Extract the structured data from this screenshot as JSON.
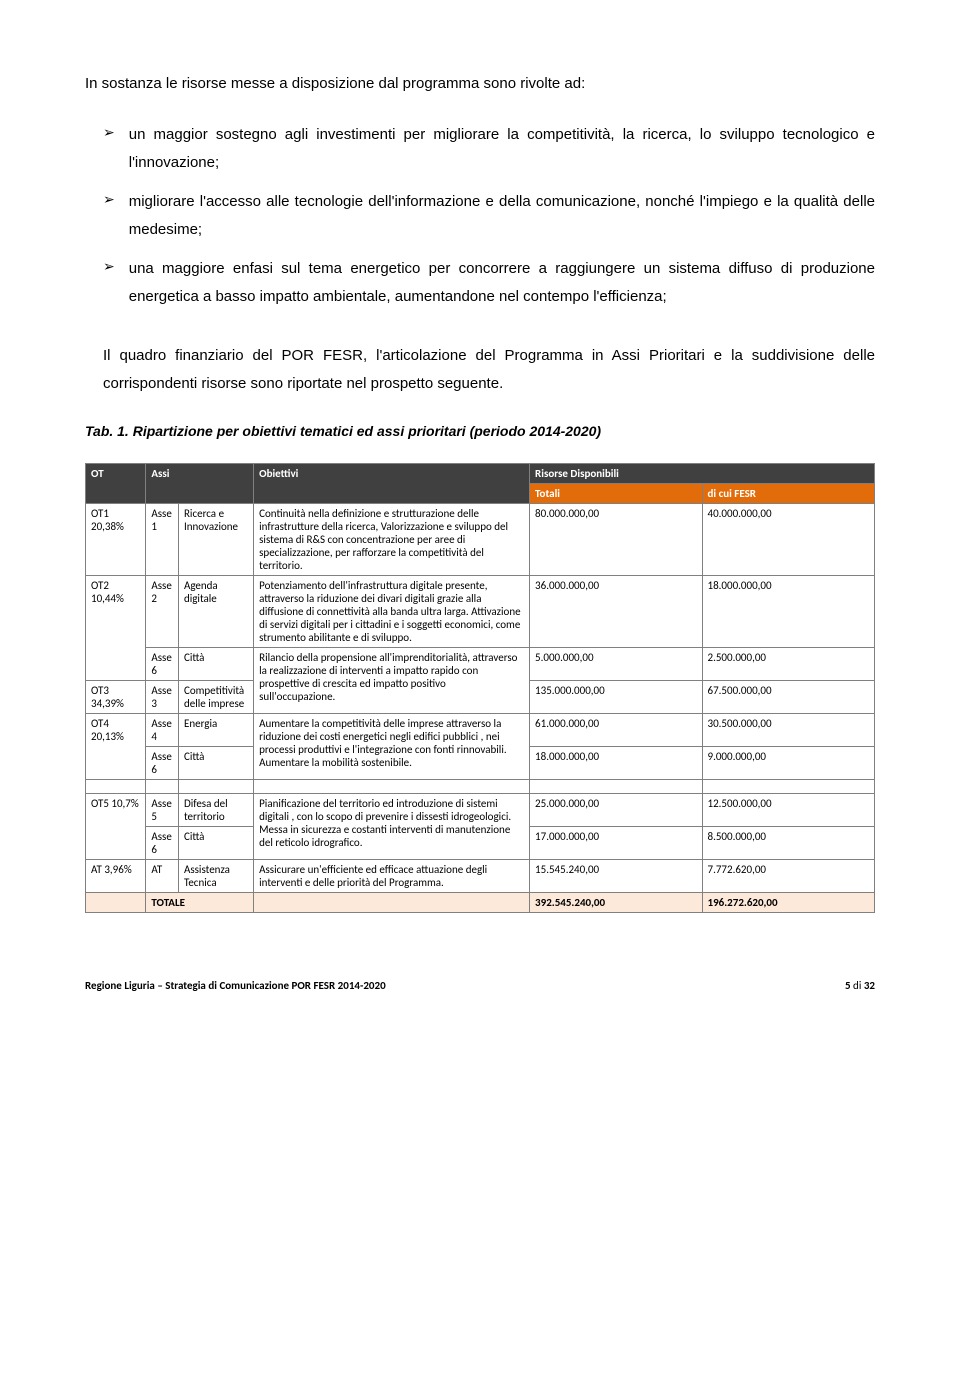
{
  "intro": "In sostanza le risorse messe a disposizione dal programma sono rivolte ad:",
  "bullets": [
    "un maggior sostegno agli investimenti per migliorare la competitività, la ricerca, lo sviluppo tecnologico e l'innovazione;",
    "migliorare l'accesso alle tecnologie dell'informazione e della comunicazione, nonché l'impiego e la qualità delle medesime;",
    "una maggiore enfasi sul tema energetico per concorrere a raggiungere un sistema diffuso di produzione energetica a basso impatto ambientale, aumentandone nel contempo l'efficienza;"
  ],
  "body_para": "Il quadro finanziario del POR FESR, l'articolazione del Programma in Assi Prioritari e la suddivisione delle corrispondenti risorse sono riportate nel prospetto seguente.",
  "tab_title": "Tab. 1. Ripartizione per obiettivi tematici ed assi prioritari (periodo 2014-2020)",
  "headers": {
    "ot": "OT",
    "assi": "Assi",
    "obiettivi": "Obiettivi",
    "risorse": "Risorse Disponibili",
    "totali": "Totali",
    "dicui": "di cui FESR"
  },
  "rows": [
    {
      "ot": "OT1 20,38%",
      "asse": "Asse 1",
      "asse_name": "Ricerca e Innovazione",
      "obj": "Continuità nella definizione e strutturazione  delle infrastrutture della ricerca, Valorizzazione e sviluppo del sistema di  R&S con concentrazione per aree di specializzazione, per rafforzare la competitività del territorio.",
      "tot": "80.000.000,00",
      "fesr": "40.000.000,00",
      "ot_rowspan": 1,
      "obj_rowspan": 1
    },
    {
      "ot": "OT2 10,44%",
      "asse": "Asse 2",
      "asse_name": "Agenda digitale",
      "obj": "Potenziamento  dell'infrastruttura digitale presente, attraverso la riduzione dei divari digitali grazie alla diffusione di connettività alla banda ultra larga. Attivazione di servizi digitali per i cittadini e i soggetti economici, come strumento abilitante e di sviluppo.",
      "tot": "36.000.000,00",
      "fesr": "18.000.000,00",
      "ot_rowspan": 2,
      "obj_rowspan": 1
    },
    {
      "ot": null,
      "asse": "Asse 6",
      "asse_name": "Città",
      "obj": "Rilancio della propensione all'imprenditorialità, attraverso la realizzazione di interventi a impatto rapido  con prospettive di crescita  ed impatto positivo sull'occupazione.",
      "tot": "5.000.000,00",
      "fesr": "2.500.000,00",
      "ot_rowspan": 0,
      "obj_rowspan": 2
    },
    {
      "ot": "OT3 34,39%",
      "asse": "Asse 3",
      "asse_name": "Competitività delle imprese",
      "obj": null,
      "tot": "135.000.000,00",
      "fesr": "67.500.000,00",
      "ot_rowspan": 1,
      "obj_rowspan": 0
    },
    {
      "ot": "OT4 20,13%",
      "asse": "Asse 4",
      "asse_name": "Energia",
      "obj": "Aumentare la competitività delle imprese attraverso la riduzione dei costi energetici negli edifici pubblici , nei processi produttivi e l'integrazione con fonti rinnovabili. Aumentare la mobilità sostenibile.",
      "tot": "61.000.000,00",
      "fesr": "30.500.000,00",
      "ot_rowspan": 2,
      "obj_rowspan": 2
    },
    {
      "ot": null,
      "asse": "Asse 6",
      "asse_name": "Città",
      "obj": null,
      "tot": "18.000.000,00",
      "fesr": "9.000.000,00",
      "ot_rowspan": 0,
      "obj_rowspan": 0
    }
  ],
  "rows2": [
    {
      "ot": "OT5 10,7%",
      "asse": "Asse 5",
      "asse_name": "Difesa del territorio",
      "obj": "Pianificazione del territorio  ed introduzione di sistemi digitali , con lo scopo di prevenire i dissesti idrogeologici.  Messa in sicurezza e costanti interventi di manutenzione del reticolo idrografico.",
      "tot": "25.000.000,00",
      "fesr": "12.500.000,00",
      "ot_rowspan": 2,
      "obj_rowspan": 2
    },
    {
      "ot": null,
      "asse": "Asse 6",
      "asse_name": "Città",
      "obj": null,
      "tot": "17.000.000,00",
      "fesr": "8.500.000,00",
      "ot_rowspan": 0,
      "obj_rowspan": 0
    },
    {
      "ot": "AT 3,96%",
      "asse": "AT",
      "asse_name": "Assistenza Tecnica",
      "obj": "Assicurare un'efficiente ed efficace attuazione degli interventi e delle priorità del Programma.",
      "tot": "15.545.240,00",
      "fesr": "7.772.620,00",
      "ot_rowspan": 1,
      "obj_rowspan": 1
    }
  ],
  "total": {
    "label": "TOTALE",
    "tot": "392.545.240,00",
    "fesr": "196.272.620,00"
  },
  "footer": {
    "left": "Regione Liguria – Strategia di Comunicazione POR FESR 2014-2020",
    "page_cur": "5",
    "page_of": " di ",
    "page_tot": "32"
  }
}
